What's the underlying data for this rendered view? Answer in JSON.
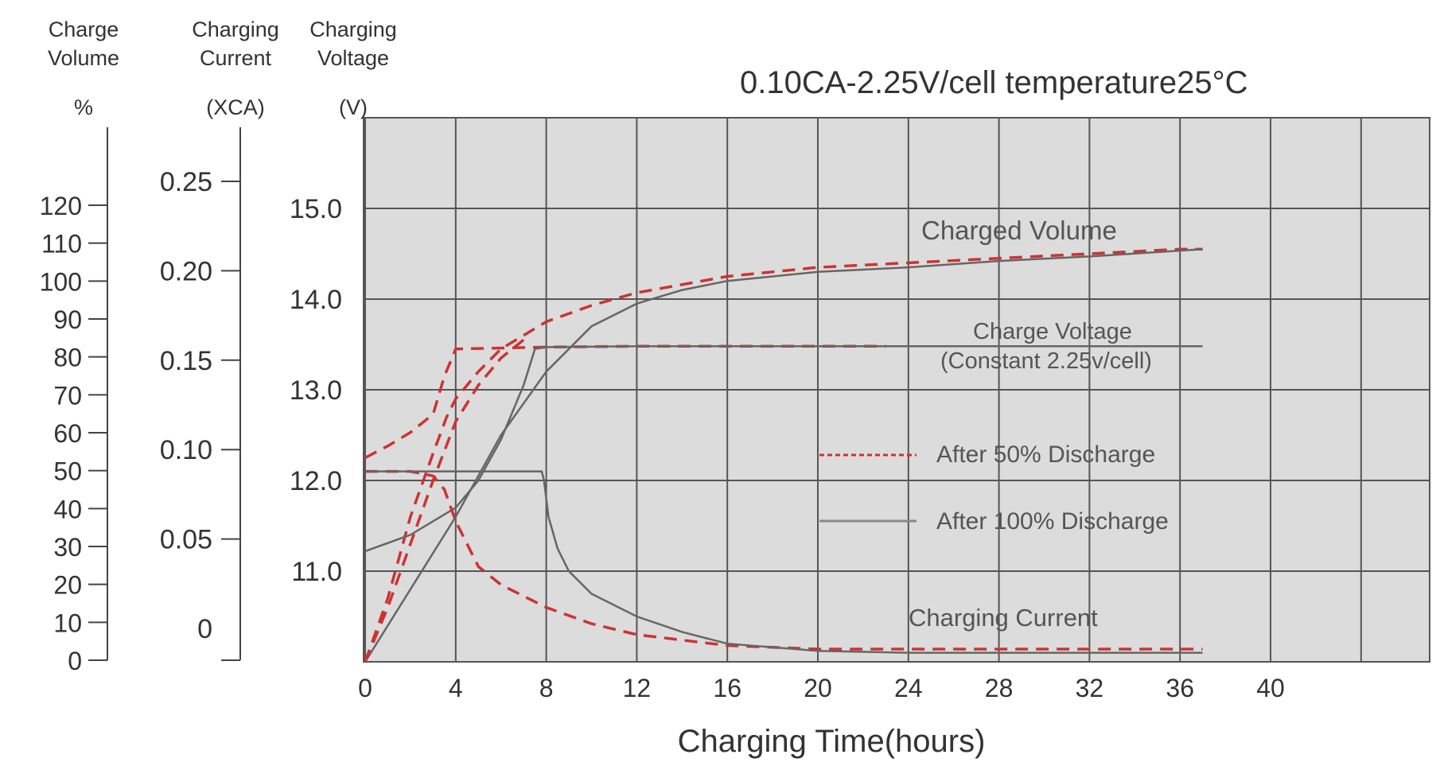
{
  "chart_data": {
    "type": "line",
    "title": "0.10CA-2.25V/cell   temperature25°C",
    "xlabel": "Charging Time(hours)",
    "xlim": [
      0,
      47
    ],
    "x_ticks": [
      0,
      4,
      8,
      12,
      16,
      20,
      24,
      28,
      32,
      36,
      40
    ],
    "axes": {
      "volume": {
        "label_lines": [
          "Charge",
          "Volume"
        ],
        "unit": "%",
        "ticks": [
          0,
          10,
          20,
          30,
          40,
          50,
          60,
          70,
          80,
          90,
          100,
          110,
          120
        ]
      },
      "current": {
        "label_lines": [
          "Charging",
          "Current"
        ],
        "unit": "(XCA)",
        "ticks": [
          0,
          0.05,
          0.1,
          0.15,
          0.2,
          0.25
        ],
        "tick_labels": [
          "0",
          "0.05",
          "0.10",
          "0.15",
          "0.20",
          "0.25"
        ]
      },
      "voltage": {
        "label_lines": [
          "Charging",
          "Voltage"
        ],
        "unit": "(V)",
        "ticks": [
          11.0,
          12.0,
          13.0,
          14.0,
          15.0
        ],
        "tick_labels": [
          "11.0",
          "12.0",
          "13.0",
          "14.0",
          "15.0"
        ],
        "ylim": [
          10.0,
          16.0
        ]
      }
    },
    "annotations": {
      "charged_volume": "Charged Volume",
      "charge_voltage_1": "Charge Voltage",
      "charge_voltage_2": "(Constant 2.25v/cell)",
      "charging_current": "Charging Current"
    },
    "legend": [
      {
        "label": "After 50% Discharge",
        "style": "dashed",
        "color": "#cc3333"
      },
      {
        "label": "After 100% Discharge",
        "style": "solid",
        "color": "#666666"
      }
    ],
    "series": [
      {
        "name": "After 50% Discharge",
        "quantity": "Charged Volume",
        "axis": "voltage",
        "style": "dashed",
        "x": [
          0,
          1,
          2,
          3,
          3.6,
          4,
          5,
          6,
          7,
          8,
          10,
          12,
          16,
          20,
          24,
          28,
          32,
          36,
          37
        ],
        "y": [
          10.0,
          10.7,
          11.6,
          12.3,
          12.7,
          12.9,
          13.2,
          13.45,
          13.6,
          13.75,
          13.93,
          14.07,
          14.25,
          14.35,
          14.4,
          14.45,
          14.5,
          14.55,
          14.55
        ]
      },
      {
        "name": "After 100% Discharge",
        "quantity": "Charged Volume",
        "axis": "voltage",
        "style": "solid",
        "x": [
          0,
          2,
          4,
          6,
          8,
          10,
          12,
          14,
          16,
          20,
          24,
          28,
          32,
          37
        ],
        "y": [
          10.0,
          10.8,
          11.6,
          12.5,
          13.2,
          13.7,
          13.95,
          14.1,
          14.2,
          14.3,
          14.35,
          14.42,
          14.47,
          14.55
        ]
      },
      {
        "name": "After 50% Discharge",
        "quantity": "Charge Voltage",
        "axis": "voltage",
        "style": "dashed",
        "x": [
          0,
          1,
          2,
          3,
          3.5,
          4,
          8,
          12,
          16,
          20,
          23
        ],
        "y": [
          12.25,
          12.38,
          12.53,
          12.73,
          13.15,
          13.45,
          13.47,
          13.48,
          13.48,
          13.48,
          13.48
        ]
      },
      {
        "name": "After 100% Discharge",
        "quantity": "Charge Voltage",
        "axis": "voltage",
        "style": "solid",
        "x": [
          0,
          2,
          4,
          5,
          6,
          7,
          7.5,
          8,
          12,
          20,
          28,
          37
        ],
        "y": [
          11.22,
          11.4,
          11.7,
          12.0,
          12.45,
          13.05,
          13.45,
          13.47,
          13.48,
          13.48,
          13.48,
          13.48
        ]
      },
      {
        "name": "After 50% Discharge",
        "quantity": "Charging Current",
        "axis": "voltage",
        "style": "dashed",
        "x": [
          0,
          2,
          3,
          3.5,
          4,
          5,
          6,
          8,
          10,
          12,
          16,
          20,
          28,
          37
        ],
        "y": [
          12.1,
          12.1,
          12.05,
          11.9,
          11.55,
          11.05,
          10.85,
          10.6,
          10.42,
          10.3,
          10.18,
          10.14,
          10.14,
          10.14
        ]
      },
      {
        "name": "After 100% Discharge",
        "quantity": "Charging Current",
        "axis": "voltage",
        "style": "solid",
        "x": [
          0,
          4,
          7.8,
          7.9,
          8.1,
          8.5,
          9,
          10,
          12,
          14,
          16,
          20,
          24,
          28,
          37
        ],
        "y": [
          12.1,
          12.1,
          12.1,
          12.0,
          11.6,
          11.25,
          11.0,
          10.75,
          10.5,
          10.33,
          10.2,
          10.12,
          10.1,
          10.1,
          10.1
        ]
      },
      {
        "name": "After 50% Discharge",
        "quantity": "Charged Volume (steep)",
        "axis": "voltage",
        "style": "dashed",
        "x": [
          0,
          1,
          2,
          3,
          4,
          5,
          6,
          7
        ],
        "y": [
          10.0,
          10.6,
          11.3,
          12.0,
          12.65,
          13.05,
          13.35,
          13.55
        ]
      }
    ]
  }
}
